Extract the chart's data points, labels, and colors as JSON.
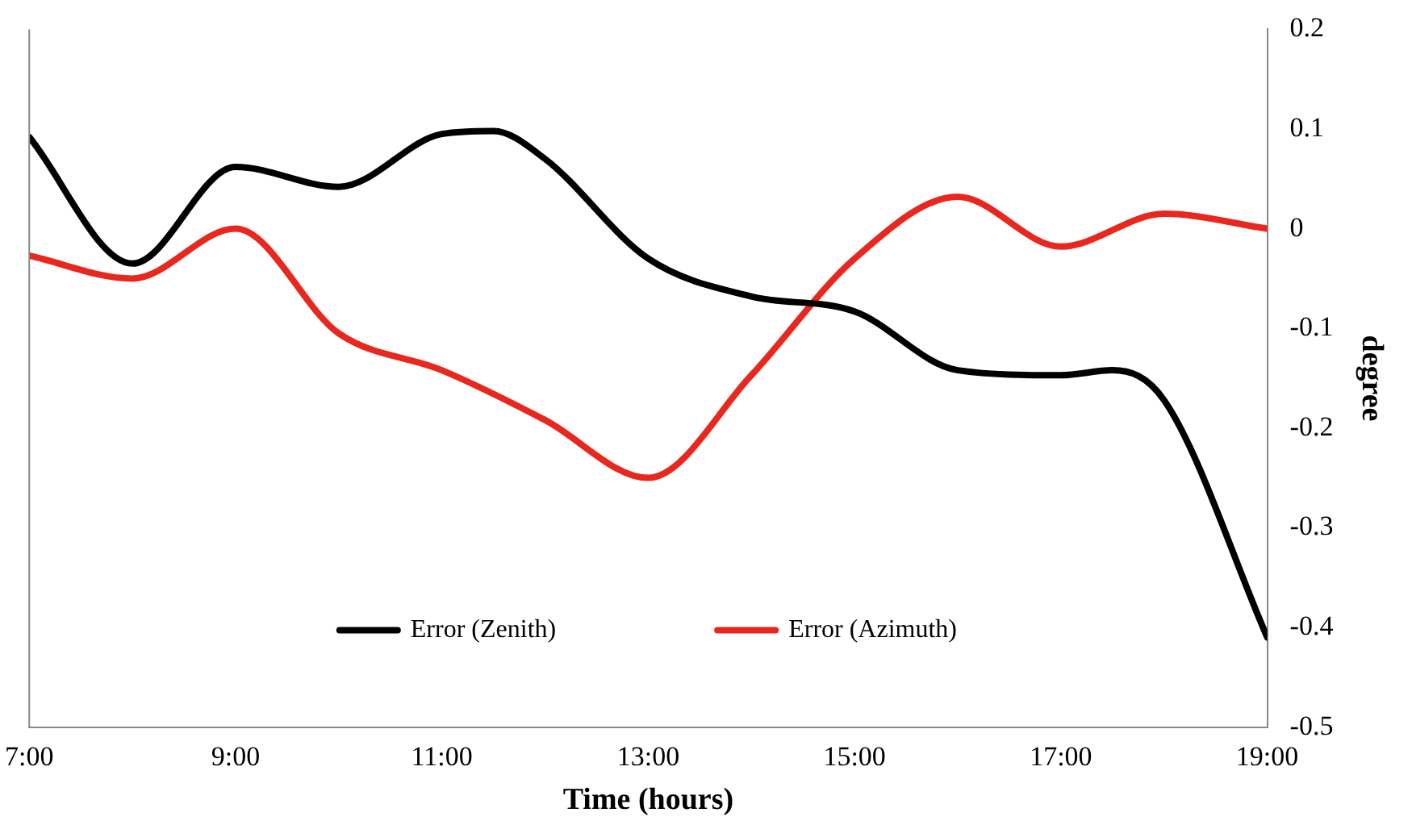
{
  "chart_data": {
    "type": "line",
    "xlabel": "Time (hours)",
    "ylabel": "degree",
    "xlim": [
      7,
      19
    ],
    "xticks": [
      {
        "value": 7,
        "label": "7:00"
      },
      {
        "value": 9,
        "label": "9:00"
      },
      {
        "value": 11,
        "label": "11:00"
      },
      {
        "value": 13,
        "label": "13:00"
      },
      {
        "value": 15,
        "label": "15:00"
      },
      {
        "value": 17,
        "label": "17:00"
      },
      {
        "value": 19,
        "label": "19:00"
      }
    ],
    "ylim": [
      -0.5,
      0.2
    ],
    "yticks": [
      -0.5,
      -0.4,
      -0.3,
      -0.2,
      -0.1,
      0,
      0.1,
      0.2
    ],
    "grid": false,
    "legend": "bottom",
    "marker": "none",
    "line_style": "solid",
    "series": [
      {
        "name": "Error (Zenith)",
        "color": "#000000",
        "x": [
          7,
          8,
          9,
          10,
          11,
          11.5,
          12,
          13,
          14,
          15,
          16,
          17,
          17.5,
          18,
          19
        ],
        "values": [
          0.092,
          -0.035,
          0.062,
          0.042,
          0.095,
          0.098,
          0.07,
          -0.03,
          -0.068,
          -0.083,
          -0.142,
          -0.147,
          -0.142,
          -0.172,
          -0.41
        ]
      },
      {
        "name": "Error (Azimuth)",
        "color": "#e8281e",
        "x": [
          7,
          8,
          9,
          10,
          11,
          12,
          13,
          14,
          15,
          16,
          17,
          18,
          19
        ],
        "values": [
          -0.027,
          -0.05,
          0,
          -0.105,
          -0.142,
          -0.192,
          -0.25,
          -0.147,
          -0.03,
          0.032,
          -0.018,
          0.015,
          0
        ]
      }
    ]
  }
}
